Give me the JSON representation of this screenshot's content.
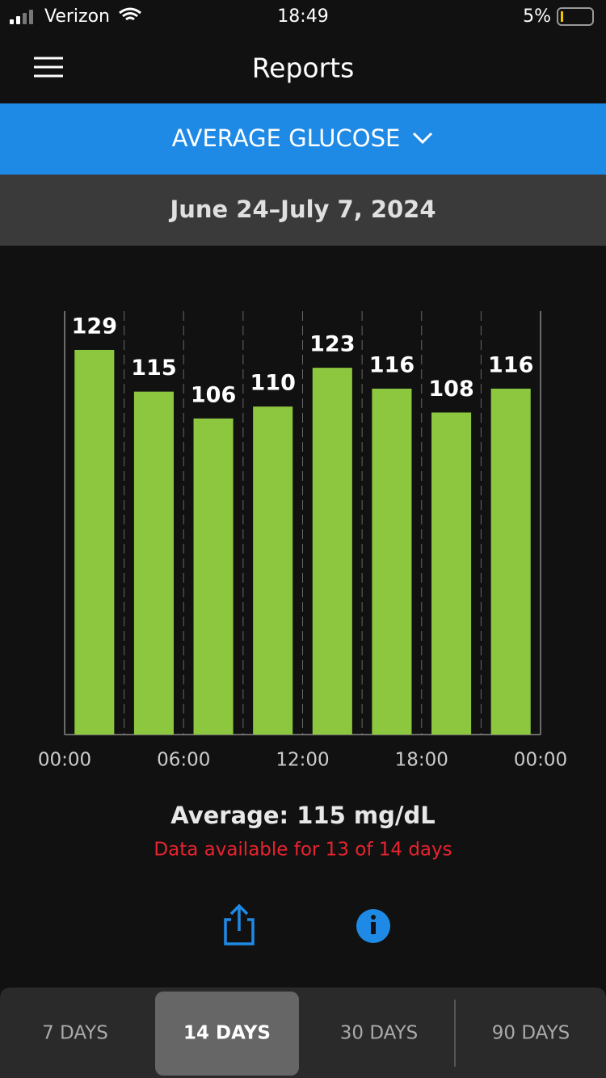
{
  "status_bar": {
    "carrier": "Verizon",
    "time": "18:49",
    "battery": "5%"
  },
  "header": {
    "title": "Reports"
  },
  "report_selector": {
    "label": "AVERAGE GLUCOSE"
  },
  "date_range": "June 24–July 7, 2024",
  "chart_data": {
    "type": "bar",
    "x": [
      1.5,
      4.5,
      7.5,
      10.5,
      13.5,
      16.5,
      19.5,
      22.5
    ],
    "values": [
      129,
      115,
      106,
      110,
      123,
      116,
      108,
      116
    ],
    "color": "#8dc63f",
    "xlim": [
      0,
      24
    ],
    "xticks": [
      {
        "value": 0,
        "label": "00:00"
      },
      {
        "value": 6,
        "label": "06:00"
      },
      {
        "value": 12,
        "label": "12:00"
      },
      {
        "value": 18,
        "label": "18:00"
      },
      {
        "value": 24,
        "label": "00:00"
      }
    ],
    "xminorticks": [
      3,
      9,
      15,
      21
    ],
    "ylim": [
      0,
      142
    ],
    "grid": true
  },
  "summary": {
    "average": "Average: 115 mg/dL",
    "availability": "Data available for 13 of 14 days"
  },
  "tabs": {
    "items": [
      "7 DAYS",
      "14 DAYS",
      "30 DAYS",
      "90 DAYS"
    ],
    "selected": 1
  }
}
